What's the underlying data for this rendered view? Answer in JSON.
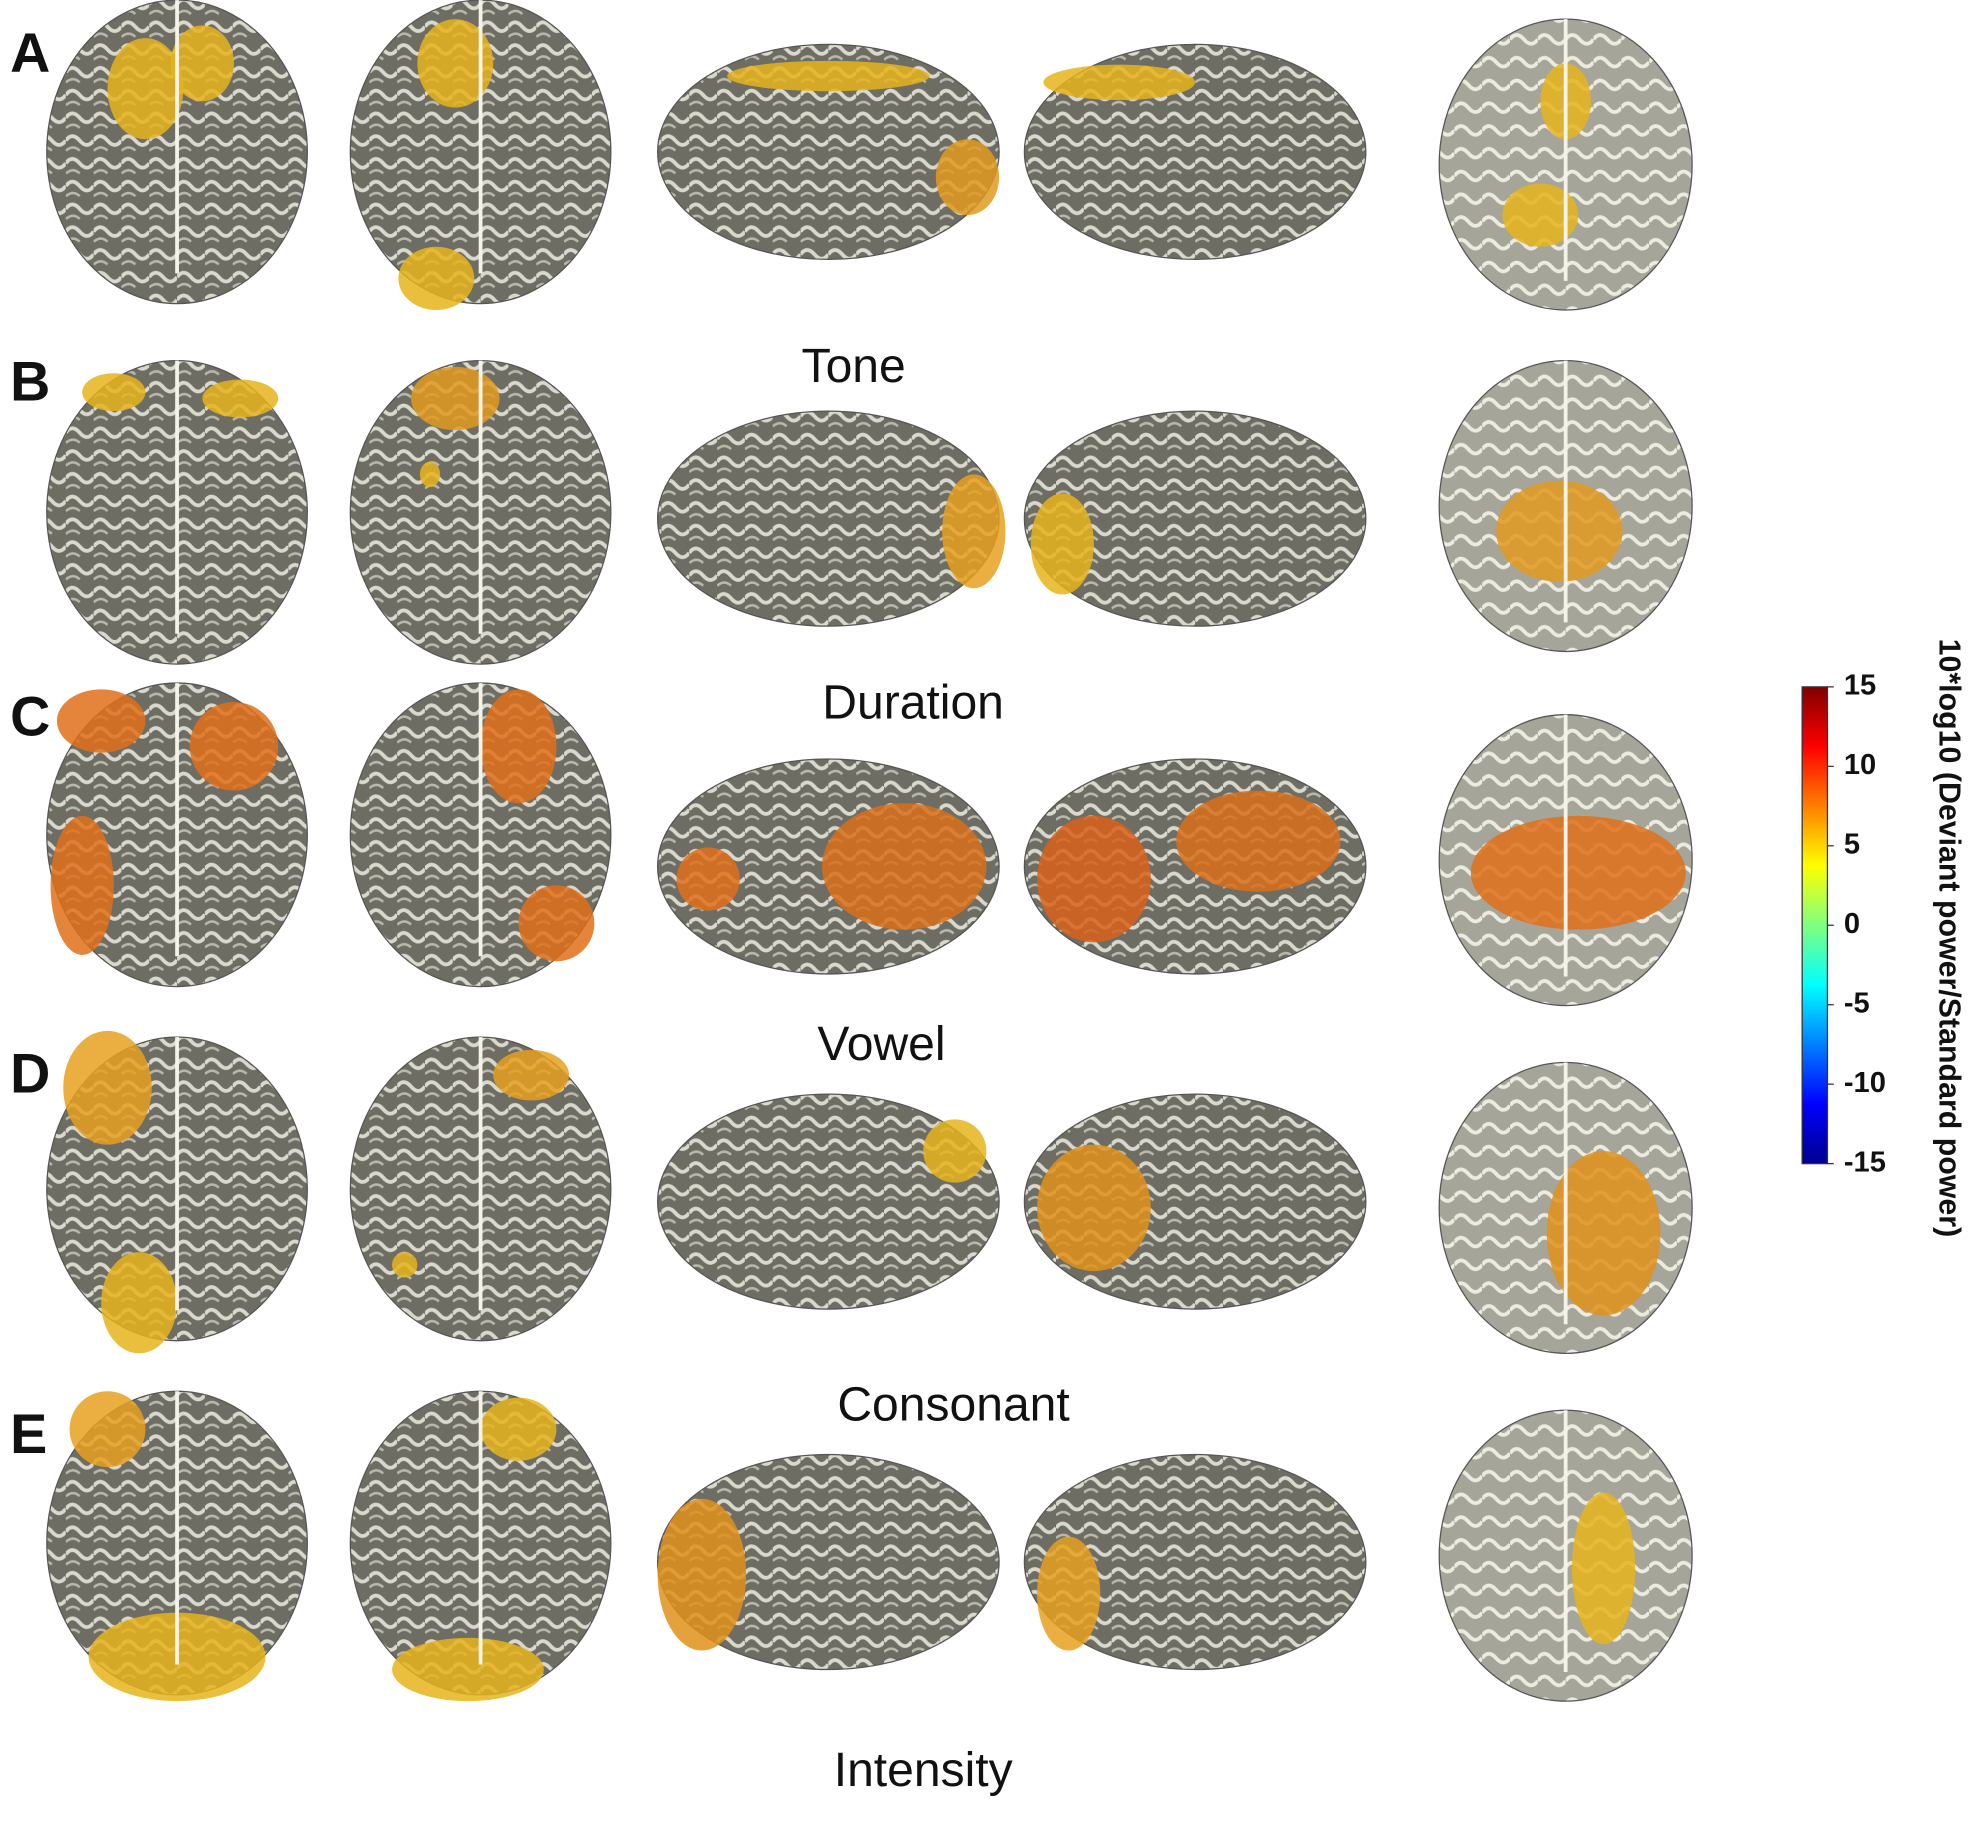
{
  "panels": [
    {
      "letter": "A",
      "condition": "Tone"
    },
    {
      "letter": "B",
      "condition": "Duration"
    },
    {
      "letter": "C",
      "condition": "Vowel"
    },
    {
      "letter": "D",
      "condition": "Consonant"
    },
    {
      "letter": "E",
      "condition": "Intensity"
    }
  ],
  "colorbar": {
    "label": "10*log10  (Deviant power/Standard power)",
    "lim": [
      -15,
      15
    ],
    "ticks": [
      15,
      10,
      5,
      0,
      -5,
      -10,
      -15
    ]
  }
}
